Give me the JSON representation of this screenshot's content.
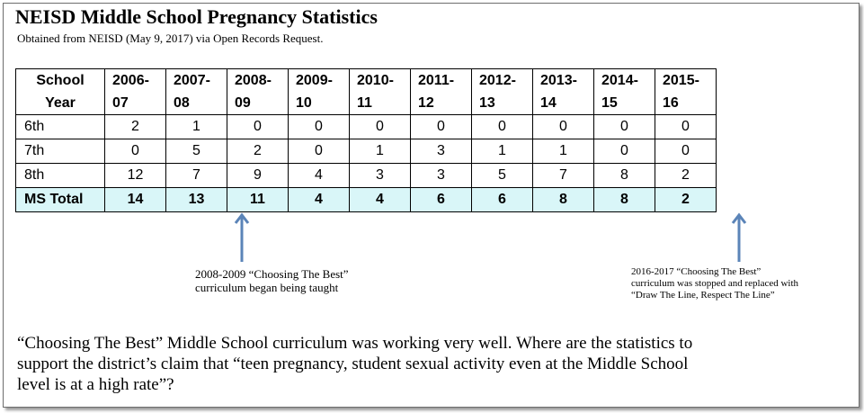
{
  "title": "NEISD Middle School Pregnancy Statistics",
  "subtitle": "Obtained from NEISD (May 9, 2017) via Open Records Request.",
  "table": {
    "header_first": [
      "School",
      "Year"
    ],
    "headers": [
      [
        "2006-",
        "07"
      ],
      [
        "2007-",
        "08"
      ],
      [
        "2008-",
        "09"
      ],
      [
        "2009-",
        "10"
      ],
      [
        "2010-",
        "11"
      ],
      [
        "2011-",
        "12"
      ],
      [
        "2012-",
        "13"
      ],
      [
        "2013-",
        "14"
      ],
      [
        "2014-",
        "15"
      ],
      [
        "2015-",
        "16"
      ]
    ],
    "rows": [
      {
        "label": "6th",
        "values": [
          "2",
          "1",
          "0",
          "0",
          "0",
          "0",
          "0",
          "0",
          "0",
          "0"
        ]
      },
      {
        "label": "7th",
        "values": [
          "0",
          "5",
          "2",
          "0",
          "1",
          "3",
          "1",
          "1",
          "0",
          "0"
        ]
      },
      {
        "label": "8th",
        "values": [
          "12",
          "7",
          "9",
          "4",
          "3",
          "3",
          "5",
          "7",
          "8",
          "2"
        ]
      }
    ],
    "total": {
      "label": "MS Total",
      "values": [
        "14",
        "13",
        "11",
        "4",
        "4",
        "6",
        "6",
        "8",
        "8",
        "2"
      ]
    }
  },
  "note1": [
    "2008-2009 “Choosing The Best”",
    "curriculum began being taught"
  ],
  "note2": [
    "2016-2017 “Choosing The Best”",
    "curriculum was stopped and replaced with",
    "“Draw The Line, Respect The Line”"
  ],
  "bottom_text": [
    "“Choosing The Best” Middle School curriculum was working very well.  Where are the statistics to",
    "support the district’s claim that  “teen pregnancy, student sexual activity even at the Middle School",
    "level is at a high rate”?"
  ],
  "colors": {
    "total_row": "#d9f6f8",
    "arrow": "#5b84b8"
  }
}
